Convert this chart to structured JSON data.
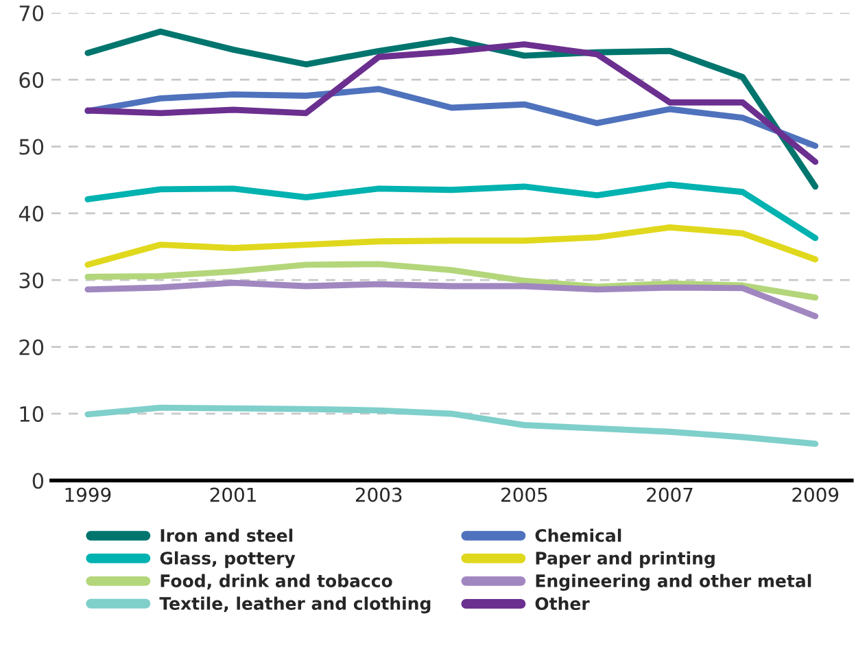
{
  "chart_data": {
    "type": "line",
    "categories": [
      "1999",
      null,
      "2001",
      null,
      "2003",
      null,
      "2005",
      null,
      "2007",
      null,
      "2009"
    ],
    "ylim": [
      0,
      70
    ],
    "yticks": [
      0,
      10,
      20,
      30,
      40,
      50,
      60,
      70
    ],
    "grid": "y",
    "legend": "bottom",
    "marker": "none",
    "line_style": "solid",
    "series": [
      {
        "name": "Iron and steel",
        "color": "#00756e",
        "values": [
          64,
          67.2,
          64.5,
          62.3,
          64.3,
          66,
          63.6,
          64.1,
          64.3,
          60.4,
          44
        ]
      },
      {
        "name": "Chemical",
        "color": "#4f72bd",
        "values": [
          55.3,
          57.2,
          57.8,
          57.6,
          58.6,
          55.8,
          56.3,
          53.5,
          55.6,
          54.3,
          50.1
        ]
      },
      {
        "name": "Glass, pottery",
        "color": "#00b2b0",
        "values": [
          42.1,
          43.6,
          43.7,
          42.4,
          43.7,
          43.5,
          44.0,
          42.7,
          44.3,
          43.2,
          36.3
        ]
      },
      {
        "name": "Paper and printing",
        "color": "#e0d81c",
        "values": [
          32.3,
          35.3,
          34.8,
          35.3,
          35.8,
          35.9,
          35.9,
          36.4,
          37.9,
          37.0,
          33.1
        ]
      },
      {
        "name": "Food, drink and tobacco",
        "color": "#b3d67a",
        "values": [
          30.5,
          30.6,
          31.3,
          32.3,
          32.4,
          31.5,
          29.9,
          29.0,
          29.5,
          29.2,
          27.4
        ]
      },
      {
        "name": "Engineering and other metal",
        "color": "#a187c0",
        "values": [
          28.6,
          28.9,
          29.6,
          29.1,
          29.4,
          29.1,
          29.1,
          28.6,
          28.9,
          28.8,
          24.6
        ]
      },
      {
        "name": "Textile, leather and clothing",
        "color": "#7fcfcb",
        "values": [
          9.9,
          10.9,
          10.8,
          10.7,
          10.5,
          10.0,
          8.3,
          7.8,
          7.3,
          6.5,
          5.5
        ]
      },
      {
        "name": "Other",
        "color": "#6b2f8f",
        "values": [
          55.4,
          55.0,
          55.5,
          55.0,
          63.4,
          64.2,
          65.3,
          63.8,
          56.6,
          56.6,
          47.7
        ]
      }
    ]
  }
}
